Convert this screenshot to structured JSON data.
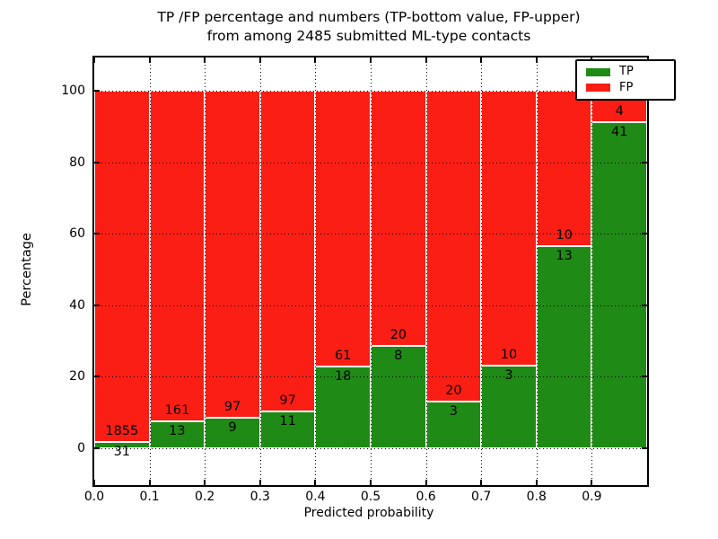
{
  "title": {
    "line1": "TP /FP percentage and numbers (TP-bottom value, FP-upper)",
    "line2": "from among 2485 submitted ML-type contacts"
  },
  "chart_data": {
    "type": "bar",
    "stacked": true,
    "normalized": "each bin scaled to 100%",
    "title": "TP /FP percentage and numbers (TP-bottom value, FP-upper) from among 2485 submitted ML-type contacts",
    "xlabel": "Predicted probability",
    "ylabel": "Percentage",
    "total_contacts": 2485,
    "bin_edges": [
      0.0,
      0.1,
      0.2,
      0.3,
      0.4,
      0.5,
      0.6,
      0.7,
      0.8,
      0.9,
      1.0
    ],
    "x_tick_labels": [
      "0.0",
      "0.1",
      "0.2",
      "0.3",
      "0.4",
      "0.5",
      "0.6",
      "0.7",
      "0.8",
      "0.9"
    ],
    "y_ticks": [
      0,
      20,
      40,
      60,
      80,
      100
    ],
    "y_tick_labels": [
      "0",
      "20",
      "40",
      "60",
      "80",
      "100"
    ],
    "xlim": [
      0.0,
      1.0
    ],
    "ylim": [
      -10,
      110
    ],
    "grid": "dotted both axes",
    "legend": {
      "position": "upper-right",
      "entries": [
        "TP",
        "FP"
      ]
    },
    "series": [
      {
        "name": "TP",
        "role": "bottom",
        "color": "#1f8a15",
        "counts": [
          31,
          13,
          9,
          11,
          18,
          8,
          3,
          3,
          13,
          41
        ]
      },
      {
        "name": "FP",
        "role": "top",
        "color": "#fb1e14",
        "counts": [
          1855,
          161,
          97,
          97,
          61,
          20,
          20,
          10,
          10,
          4
        ]
      }
    ],
    "tp_percent_of_bin": [
      1.64,
      7.47,
      8.49,
      10.19,
      22.78,
      28.57,
      13.04,
      23.08,
      56.52,
      91.11
    ]
  },
  "colors": {
    "tp_green": "#1f8a15",
    "fp_red": "#fb1e14",
    "spine": "#000000",
    "grid": "#000000",
    "background": "#ffffff"
  }
}
